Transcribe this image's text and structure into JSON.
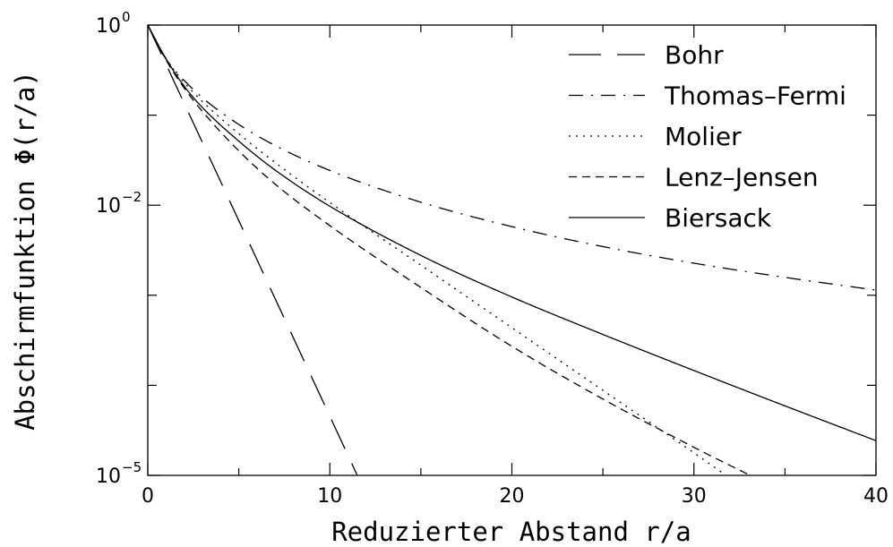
{
  "chart_data": {
    "type": "line",
    "title": "",
    "xlabel": "Reduzierter Abstand r/a",
    "ylabel": "Abschirmfunktion Φ(r/a)",
    "xlim": [
      0,
      40
    ],
    "ylim": [
      1e-05,
      1
    ],
    "yscale": "log",
    "x_ticks": [
      0,
      10,
      20,
      30,
      40
    ],
    "y_major_ticks": [
      {
        "mantissa": "10",
        "exponent": "0",
        "value": 1
      },
      {
        "mantissa": "10",
        "exponent": "−2",
        "value": 0.01
      },
      {
        "mantissa": "10",
        "exponent": "−5",
        "value": 1e-05
      }
    ],
    "legend_position": "top-right",
    "grid": false,
    "series": [
      {
        "name": "Bohr",
        "dash": "long-dash",
        "x": [
          0,
          2,
          4,
          6,
          8,
          10,
          11.6
        ],
        "y": [
          1,
          0.1353,
          0.01832,
          0.002479,
          0.0003355,
          4.54e-05,
          9.1e-06
        ]
      },
      {
        "name": "Thomas–Fermi",
        "dash": "dash-dot",
        "x": [
          0,
          1,
          2,
          3,
          5,
          7,
          10,
          15,
          20,
          25,
          30,
          35,
          40
        ],
        "y": [
          1,
          0.42,
          0.243,
          0.156,
          0.0788,
          0.0459,
          0.0243,
          0.0108,
          0.00578,
          0.00347,
          0.00227,
          0.00158,
          0.00114
        ]
      },
      {
        "name": "Molier",
        "dash": "dotted",
        "x": [
          0,
          1,
          2,
          3,
          5,
          7,
          10,
          15,
          20,
          25,
          30,
          34.6
        ],
        "y": [
          1,
          0.4245,
          0.2305,
          0.1418,
          0.0622,
          0.0297,
          0.0107,
          0.00216,
          0.000436,
          8.79e-05,
          1.78e-05,
          3.9e-06
        ]
      },
      {
        "name": "Lenz–Jensen",
        "dash": "short-dash",
        "x": [
          0,
          1,
          2,
          3,
          5,
          7,
          10,
          15,
          20,
          25,
          30,
          33.9
        ],
        "y": [
          1,
          0.41,
          0.2,
          0.11,
          0.0401,
          0.0171,
          0.00593,
          0.00122,
          0.000271,
          7.04e-05,
          2.05e-05,
          8.3e-06
        ]
      },
      {
        "name": "Biersack",
        "dash": "solid",
        "x": [
          0,
          1,
          2,
          3,
          5,
          7,
          10,
          15,
          20,
          25,
          30,
          35,
          40
        ],
        "y": [
          1,
          0.4232,
          0.2094,
          0.1215,
          0.0514,
          0.0245,
          0.00974,
          0.00277,
          0.000957,
          0.000367,
          0.000146,
          5.91e-05,
          2.43e-05
        ]
      }
    ]
  }
}
